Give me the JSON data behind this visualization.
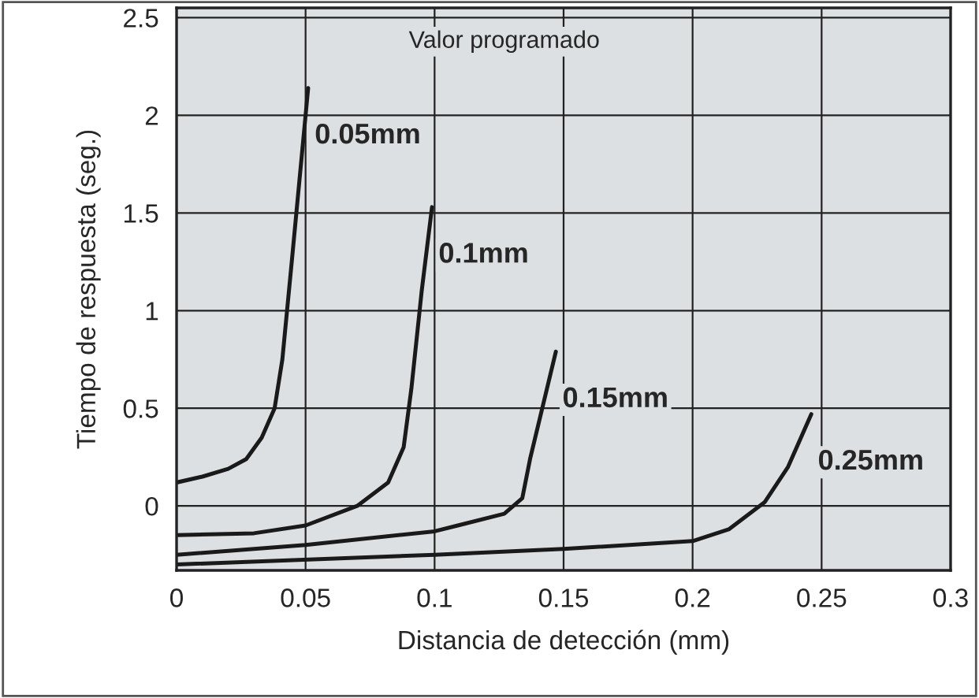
{
  "chart_data": {
    "type": "line",
    "xlabel": "Distancia de detección (mm)",
    "ylabel": "Tiempo de respuesta (seg.)",
    "annotations": [
      "Valor programado"
    ],
    "xlim": [
      0,
      0.3
    ],
    "xticks": [
      0,
      0.05,
      0.1,
      0.15,
      0.2,
      0.25,
      0.3
    ],
    "ylim": [
      -0.33,
      2.55
    ],
    "yticks": [
      0,
      0.5,
      1,
      1.5,
      2,
      2.5
    ],
    "grid": true,
    "legend": false,
    "series": [
      {
        "name": "0.05mm",
        "color": "#1a1a1a",
        "x": [
          0,
          0.01,
          0.02,
          0.027,
          0.033,
          0.038,
          0.041,
          0.045,
          0.051
        ],
        "values": [
          0.12,
          0.15,
          0.19,
          0.24,
          0.35,
          0.5,
          0.75,
          1.3,
          2.14
        ]
      },
      {
        "name": "0.1mm",
        "color": "#1a1a1a",
        "x": [
          0,
          0.03,
          0.05,
          0.07,
          0.082,
          0.088,
          0.091,
          0.095,
          0.099
        ],
        "values": [
          -0.15,
          -0.14,
          -0.1,
          0.0,
          0.12,
          0.3,
          0.6,
          1.1,
          1.53
        ]
      },
      {
        "name": "0.15mm",
        "color": "#1a1a1a",
        "x": [
          0,
          0.05,
          0.1,
          0.109,
          0.127,
          0.134,
          0.137,
          0.147
        ],
        "values": [
          -0.25,
          -0.2,
          -0.13,
          -0.1,
          -0.04,
          0.04,
          0.24,
          0.79
        ]
      },
      {
        "name": "0.25mm",
        "color": "#1a1a1a",
        "x": [
          0,
          0.1,
          0.15,
          0.2,
          0.214,
          0.228,
          0.237,
          0.246
        ],
        "values": [
          -0.3,
          -0.25,
          -0.22,
          -0.18,
          -0.12,
          0.02,
          0.2,
          0.47
        ]
      }
    ]
  }
}
